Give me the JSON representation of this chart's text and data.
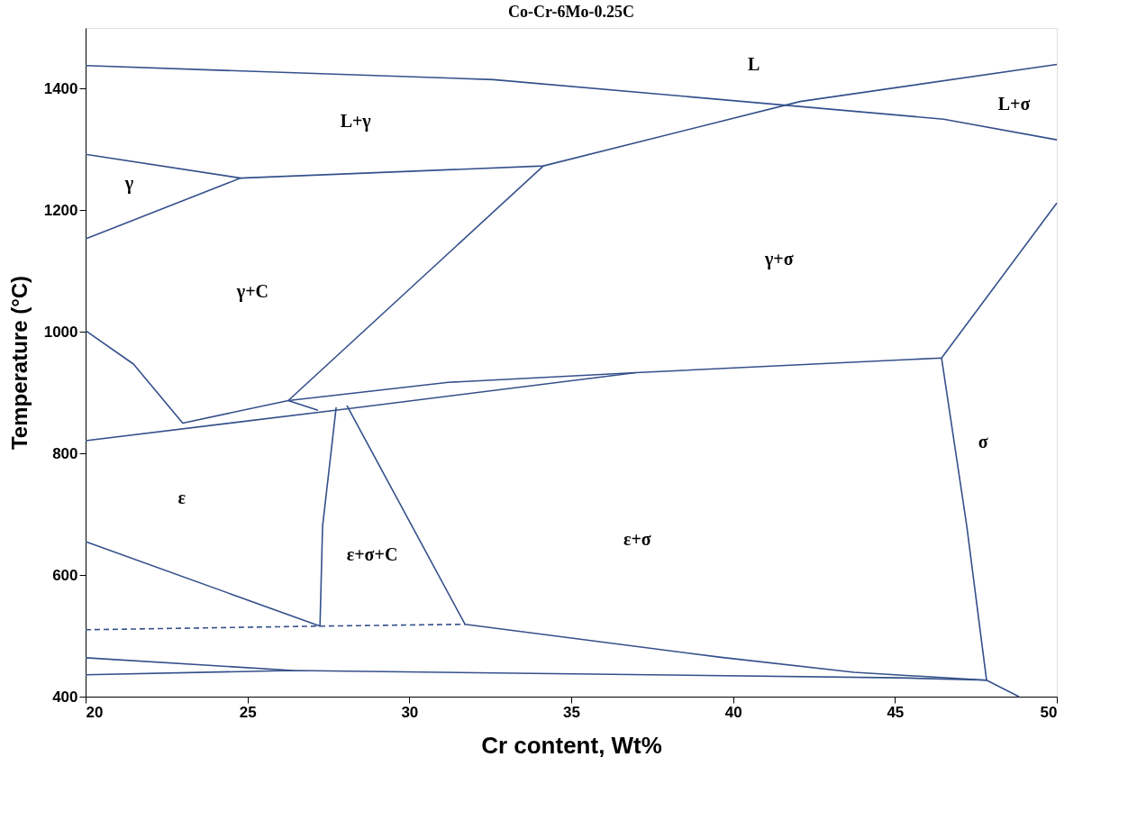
{
  "chart_data": {
    "type": "line",
    "title": "Co-Cr-6Mo-0.25C",
    "xlabel": "Cr content, Wt%",
    "ylabel": "Temperature (°C)",
    "xlim": [
      20,
      50
    ],
    "xticks": [
      20,
      25,
      30,
      35,
      40,
      45,
      50
    ],
    "ylim": [
      400,
      1500
    ],
    "yticks": [
      400,
      600,
      800,
      1000,
      1200,
      1400
    ],
    "grid": false,
    "marker": "none",
    "line_style": "solid",
    "series": [
      {
        "color": "#34508a",
        "x": [
          20,
          32.6,
          46.5,
          50
        ],
        "values": [
          1438,
          1415,
          1350,
          1316
        ]
      },
      {
        "color": "#34508a",
        "x": [
          20,
          24.79,
          34.14,
          42.07,
          50
        ],
        "values": [
          1292,
          1253,
          1273,
          1379,
          1440
        ]
      },
      {
        "color": "#34508a",
        "x": [
          20,
          24.79
        ],
        "values": [
          1153,
          1253
        ]
      },
      {
        "color": "#34508a",
        "x": [
          34.14,
          26.26
        ],
        "values": [
          1273,
          887
        ]
      },
      {
        "color": "#34508a",
        "x": [
          20,
          21.48,
          23.0,
          26.26,
          31.2,
          37.0,
          46.44,
          47.22,
          47.83,
          48.83
        ],
        "values": [
          1002,
          947,
          850,
          887,
          917,
          933,
          957,
          680,
          427,
          400
        ]
      },
      {
        "color": "#34508a",
        "x": [
          46.44,
          50
        ],
        "values": [
          957,
          1212
        ]
      },
      {
        "color": "#34508a",
        "x": [
          20,
          28.0,
          37.0
        ],
        "values": [
          821,
          873,
          933
        ]
      },
      {
        "color": "#34508a",
        "x": [
          26.26,
          27.18
        ],
        "values": [
          887,
          871
        ]
      },
      {
        "color": "#34508a",
        "x": [
          27.74,
          27.32,
          27.24,
          20
        ],
        "values": [
          876,
          680,
          516,
          655
        ]
      },
      {
        "color": "#34508a",
        "x": [
          28.07,
          31.72,
          39.57,
          43.74,
          47.83
        ],
        "values": [
          879,
          519,
          465,
          440,
          427
        ]
      },
      {
        "color": "#34508a",
        "line_style": "dashed",
        "x": [
          20,
          27.24,
          31.72
        ],
        "values": [
          510,
          516,
          519
        ]
      },
      {
        "color": "#34508a",
        "x": [
          20,
          26.4,
          45.13,
          47.83
        ],
        "values": [
          436,
          443,
          431,
          427
        ]
      },
      {
        "color": "#34508a",
        "x": [
          20,
          26.4
        ],
        "values": [
          464,
          443
        ]
      }
    ],
    "annotations": [
      "L",
      "L+γ",
      "L+σ",
      "γ",
      "γ+C",
      "γ+σ",
      "σ",
      "ε",
      "ε+σ+C",
      "ε+σ"
    ]
  }
}
